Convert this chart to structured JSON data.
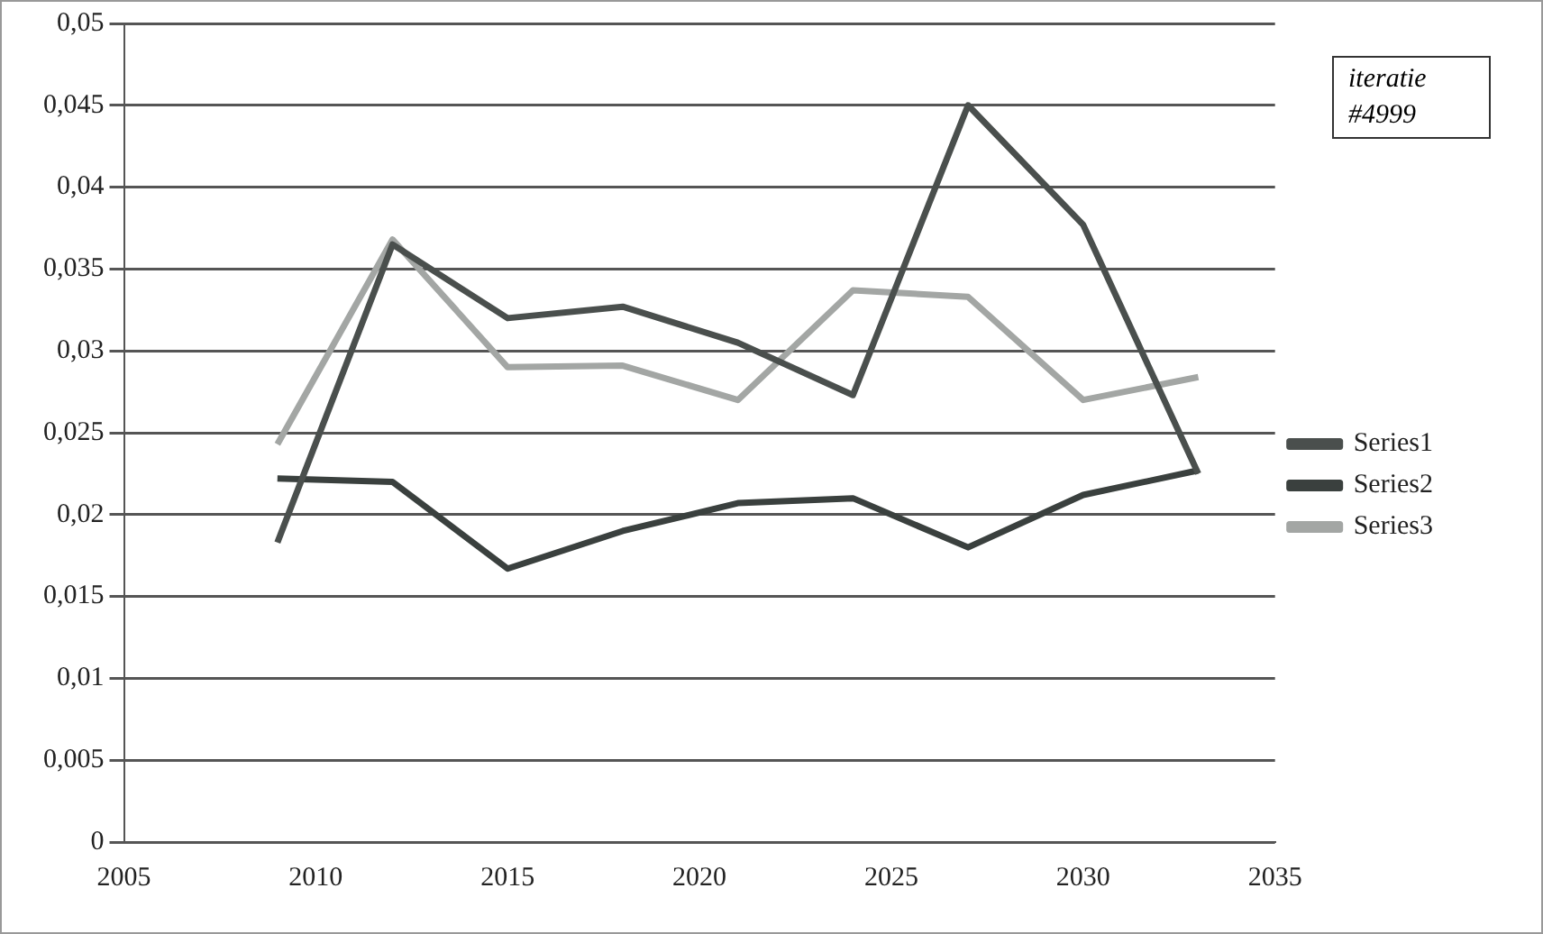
{
  "chart_data": {
    "type": "line",
    "annotations": [
      "iteratie\n#4999"
    ],
    "x": [
      2009,
      2012,
      2015,
      2018,
      2021,
      2024,
      2027,
      2030,
      2033
    ],
    "series": [
      {
        "name": "Series1",
        "color": "#4a4f4d",
        "values": [
          0.0183,
          0.0365,
          0.032,
          0.0327,
          0.0305,
          0.0273,
          0.045,
          0.0377,
          0.0225
        ]
      },
      {
        "name": "Series2",
        "color": "#3a403e",
        "values": [
          0.0222,
          0.022,
          0.0167,
          0.019,
          0.0207,
          0.021,
          0.018,
          0.0212,
          0.0227
        ]
      },
      {
        "name": "Series3",
        "color": "#a3a6a4",
        "values": [
          0.0243,
          0.0368,
          0.029,
          0.0291,
          0.027,
          0.0337,
          0.0333,
          0.027,
          0.0284
        ]
      }
    ],
    "xlim": [
      2005,
      2035
    ],
    "xticks": [
      2005,
      2010,
      2015,
      2020,
      2025,
      2030,
      2035
    ],
    "ylim": [
      0,
      0.05
    ],
    "yticks": [
      {
        "value": 0,
        "label": "0"
      },
      {
        "value": 0.005,
        "label": "0,005"
      },
      {
        "value": 0.01,
        "label": "0,01"
      },
      {
        "value": 0.015,
        "label": "0,015"
      },
      {
        "value": 0.02,
        "label": "0,02"
      },
      {
        "value": 0.025,
        "label": "0,025"
      },
      {
        "value": 0.03,
        "label": "0,03"
      },
      {
        "value": 0.035,
        "label": "0,035"
      },
      {
        "value": 0.04,
        "label": "0,04"
      },
      {
        "value": 0.045,
        "label": "0,045"
      },
      {
        "value": 0.05,
        "label": "0,05"
      }
    ],
    "grid": "y",
    "legend": "right",
    "marker": "none",
    "line_style": "solid"
  }
}
